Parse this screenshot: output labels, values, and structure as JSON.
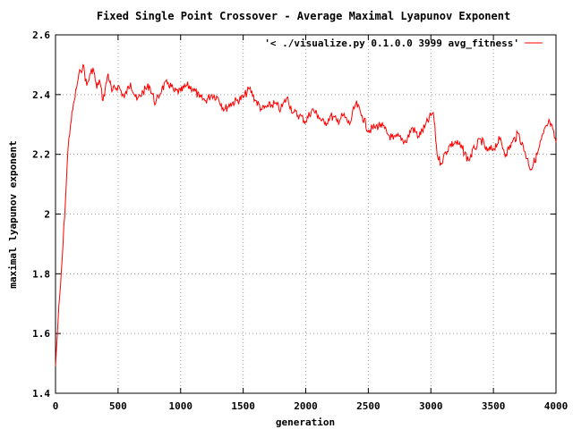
{
  "chart_data": {
    "type": "line",
    "title": "Fixed Single Point Crossover - Average Maximal Lyapunov Exponent",
    "xlabel": "generation",
    "ylabel": "maximal lyapunov exponent",
    "xlim": [
      0,
      4000
    ],
    "ylim": [
      1.4,
      2.6
    ],
    "x_ticks": [
      0,
      500,
      1000,
      1500,
      2000,
      2500,
      3000,
      3500,
      4000
    ],
    "y_ticks": [
      1.4,
      1.6,
      1.8,
      2.0,
      2.2,
      2.4,
      2.6
    ],
    "x_tick_labels": [
      "0",
      "500",
      "1000",
      "1500",
      "2000",
      "2500",
      "3000",
      "3500",
      "4000"
    ],
    "y_tick_labels": [
      "1.4",
      "1.6",
      "1.8",
      "2",
      "2.2",
      "2.4",
      "2.6"
    ],
    "grid": true,
    "legend_position": "top-right",
    "series": [
      {
        "name": "'< ./visualize.py 0.1.0.0 3999 avg_fitness'",
        "color": "#ff0000",
        "x": [
          0,
          20,
          40,
          60,
          80,
          100,
          120,
          150,
          180,
          200,
          220,
          250,
          280,
          300,
          330,
          350,
          380,
          420,
          450,
          500,
          550,
          600,
          650,
          700,
          750,
          800,
          850,
          900,
          950,
          1000,
          1050,
          1100,
          1150,
          1200,
          1250,
          1300,
          1350,
          1400,
          1450,
          1500,
          1550,
          1600,
          1650,
          1700,
          1750,
          1800,
          1850,
          1900,
          1950,
          2000,
          2050,
          2100,
          2150,
          2200,
          2250,
          2300,
          2350,
          2400,
          2450,
          2500,
          2550,
          2600,
          2650,
          2700,
          2750,
          2800,
          2850,
          2900,
          2950,
          3000,
          3020,
          3050,
          3080,
          3100,
          3150,
          3200,
          3250,
          3300,
          3350,
          3400,
          3450,
          3500,
          3550,
          3600,
          3650,
          3700,
          3750,
          3800,
          3850,
          3900,
          3950,
          4000
        ],
        "y": [
          1.49,
          1.64,
          1.76,
          1.9,
          2.05,
          2.22,
          2.3,
          2.38,
          2.45,
          2.48,
          2.5,
          2.43,
          2.47,
          2.49,
          2.42,
          2.45,
          2.38,
          2.47,
          2.41,
          2.43,
          2.39,
          2.44,
          2.38,
          2.41,
          2.43,
          2.37,
          2.42,
          2.44,
          2.41,
          2.41,
          2.43,
          2.42,
          2.39,
          2.38,
          2.4,
          2.39,
          2.35,
          2.37,
          2.38,
          2.39,
          2.42,
          2.38,
          2.35,
          2.36,
          2.37,
          2.35,
          2.39,
          2.34,
          2.33,
          2.31,
          2.35,
          2.33,
          2.3,
          2.33,
          2.31,
          2.33,
          2.3,
          2.37,
          2.33,
          2.28,
          2.29,
          2.3,
          2.27,
          2.25,
          2.26,
          2.24,
          2.29,
          2.26,
          2.29,
          2.33,
          2.34,
          2.2,
          2.17,
          2.19,
          2.23,
          2.24,
          2.22,
          2.18,
          2.22,
          2.25,
          2.21,
          2.22,
          2.25,
          2.2,
          2.24,
          2.27,
          2.21,
          2.15,
          2.2,
          2.27,
          2.31,
          2.24
        ]
      }
    ]
  }
}
